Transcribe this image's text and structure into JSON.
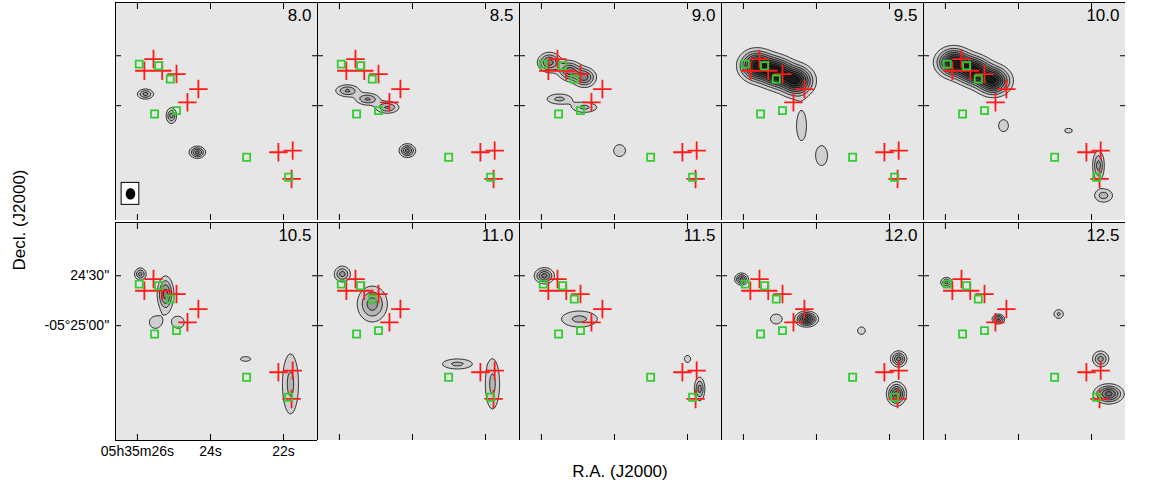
{
  "chart_data": {
    "type": "contour",
    "xlabel": "R.A. (J2000)",
    "ylabel": "Decl. (J2000)",
    "xlim": [
      26.6,
      21.07
    ],
    "ylim": [
      -19569,
      -19438
    ],
    "xticks": [
      {
        "value": 26,
        "label": "05h35m26s"
      },
      {
        "value": 24,
        "label": "24s"
      },
      {
        "value": 22,
        "label": "22s"
      }
    ],
    "yticks": [
      {
        "value": -19470,
        "label": "24'30''"
      },
      {
        "value": -19500,
        "label": "-05°25'00''"
      }
    ],
    "contour_levels": [
      1,
      2,
      3,
      4,
      5,
      6,
      7,
      8
    ],
    "beam": {
      "ra": 26.19,
      "dec": -19553,
      "sra": 0.11,
      "sdec": 3
    },
    "markers": [
      {
        "marker": "plus",
        "color": "#ff1a1a",
        "points": [
          [
            25.56,
            -19472
          ],
          [
            25.81,
            -19479
          ],
          [
            25.32,
            -19479
          ],
          [
            24.93,
            -19481
          ],
          [
            24.33,
            -19490
          ],
          [
            24.63,
            -19498
          ],
          [
            22.14,
            -19528
          ],
          [
            21.75,
            -19527
          ],
          [
            21.78,
            -19544
          ]
        ]
      },
      {
        "marker": "square",
        "color": "#33cc33",
        "points": [
          [
            25.95,
            -19475
          ],
          [
            25.42,
            -19476
          ],
          [
            25.1,
            -19484
          ],
          [
            25.53,
            -19505
          ],
          [
            24.93,
            -19503
          ],
          [
            23.01,
            -19531
          ],
          [
            21.86,
            -19543
          ]
        ]
      }
    ],
    "panels": [
      {
        "title": "8.0",
        "components": [
          [
            25.78,
            -19493,
            0.14,
            1.9,
            3.5
          ],
          [
            25.07,
            -19506,
            0.09,
            3.0,
            3.5
          ],
          [
            24.36,
            -19528,
            0.13,
            2.1,
            4.5
          ]
        ]
      },
      {
        "title": "8.5",
        "components": [
          [
            25.78,
            -19491,
            0.21,
            2.3,
            3.2
          ],
          [
            25.23,
            -19496,
            0.21,
            2.3,
            3.2
          ],
          [
            24.69,
            -19501,
            0.21,
            2.3,
            3.2
          ],
          [
            24.14,
            -19527,
            0.13,
            2.4,
            4.5
          ]
        ]
      },
      {
        "title": "9.0",
        "components": [
          [
            25.78,
            -19474,
            0.19,
            3.5,
            4.5
          ],
          [
            25.23,
            -19479,
            0.19,
            3.5,
            4.5
          ],
          [
            24.82,
            -19483,
            0.19,
            3.5,
            4.5
          ],
          [
            25.51,
            -19496,
            0.26,
            2.3,
            2.3
          ],
          [
            24.82,
            -19501,
            0.26,
            2.3,
            2.3
          ],
          [
            23.86,
            -19527,
            0.18,
            4,
            1.5
          ]
        ]
      },
      {
        "title": "9.5",
        "components": [
          [
            25.64,
            -19476,
            0.27,
            5.3,
            8
          ],
          [
            25.1,
            -19480,
            0.27,
            5.3,
            8
          ],
          [
            24.55,
            -19485,
            0.27,
            5.3,
            8
          ],
          [
            24.41,
            -19512,
            0.15,
            10,
            1.5
          ],
          [
            23.86,
            -19530,
            0.18,
            6.7,
            1.5
          ]
        ]
      },
      {
        "title": "10.0",
        "components": [
          [
            25.78,
            -19474,
            0.27,
            5,
            8
          ],
          [
            25.23,
            -19479,
            0.27,
            5,
            8
          ],
          [
            24.69,
            -19485,
            0.27,
            5,
            8
          ],
          [
            24.41,
            -19512,
            0.15,
            4,
            1.5
          ],
          [
            21.81,
            -19536,
            0.1,
            5.7,
            3.5
          ],
          [
            21.67,
            -19554,
            0.18,
            2.9,
            2.5
          ],
          [
            22.63,
            -19515,
            0.15,
            2,
            1.3
          ]
        ]
      },
      {
        "title": "10.5",
        "components": [
          [
            25.92,
            -19469,
            0.1,
            2.3,
            3.5
          ],
          [
            25.23,
            -19481,
            0.13,
            6.3,
            4.5
          ],
          [
            25.51,
            -19498,
            0.18,
            4,
            1.5
          ],
          [
            24.88,
            -19498,
            0.18,
            4,
            1.5
          ],
          [
            21.81,
            -19535,
            0.17,
            14,
            2.3
          ],
          [
            23.04,
            -19520,
            0.2,
            2,
            1.3
          ]
        ]
      },
      {
        "title": "11.0",
        "components": [
          [
            25.92,
            -19469,
            0.14,
            3,
            3.5
          ],
          [
            25.1,
            -19487,
            0.26,
            6.8,
            3.5
          ],
          [
            22.77,
            -19523,
            0.32,
            2.3,
            2.3
          ],
          [
            21.81,
            -19535,
            0.15,
            11.7,
            2.3
          ]
        ]
      },
      {
        "title": "11.5",
        "components": [
          [
            25.92,
            -19470,
            0.16,
            2.8,
            4.5
          ],
          [
            24.96,
            -19496,
            0.38,
            3.7,
            2.3
          ],
          [
            21.67,
            -19538,
            0.09,
            4.5,
            3.5
          ],
          [
            22.0,
            -19520,
            0.12,
            3,
            1.3
          ]
        ]
      },
      {
        "title": "12.0",
        "components": [
          [
            26.05,
            -19472,
            0.11,
            2.1,
            4.5
          ],
          [
            24.27,
            -19496,
            0.17,
            2.5,
            6.5
          ],
          [
            25.1,
            -19496,
            0.18,
            3.3,
            1.5
          ],
          [
            21.75,
            -19520,
            0.13,
            2.8,
            4.5
          ],
          [
            21.81,
            -19541,
            0.15,
            4,
            5.5
          ],
          [
            22.77,
            -19503,
            0.12,
            2.5,
            1.5
          ]
        ]
      },
      {
        "title": "12.5",
        "components": [
          [
            25.97,
            -19474,
            0.1,
            1.9,
            3.5
          ],
          [
            24.55,
            -19496,
            0.1,
            1.7,
            4.5
          ],
          [
            22.9,
            -19493,
            0.1,
            2,
            2.3
          ],
          [
            21.75,
            -19520,
            0.14,
            3,
            3.5
          ],
          [
            21.53,
            -19541,
            0.23,
            3.3,
            5.5
          ]
        ]
      }
    ]
  }
}
